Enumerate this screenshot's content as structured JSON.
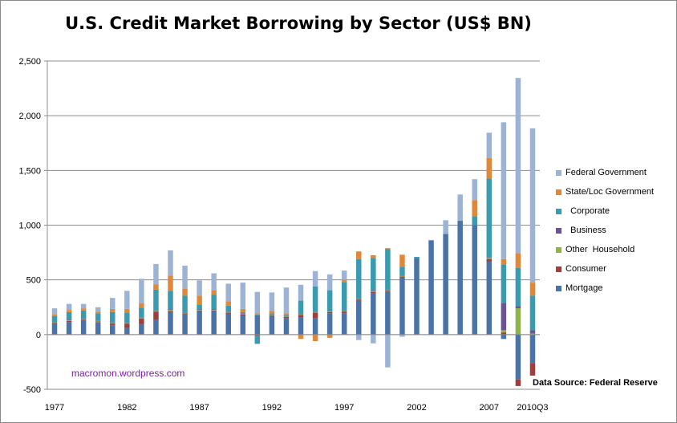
{
  "chart_data": {
    "type": "bar",
    "stacked": true,
    "title": "U.S. Credit Market Borrowing by Sector (US$ BN)",
    "xlabel": "",
    "ylabel": "",
    "ylim": [
      -500,
      2500
    ],
    "yticks": [
      -500,
      0,
      500,
      1000,
      1500,
      2000,
      2500
    ],
    "ytick_labels": [
      "-500",
      "0",
      "500",
      "1,000",
      "1,500",
      "2,000",
      "2,500"
    ],
    "categories": [
      "1977",
      "1978",
      "1979",
      "1980",
      "1981",
      "1982",
      "1983",
      "1984",
      "1985",
      "1986",
      "1987",
      "1988",
      "1989",
      "1990",
      "1991",
      "1992",
      "1993",
      "1994",
      "1995",
      "1996",
      "1997",
      "1998",
      "1999",
      "2000",
      "2001",
      "2002",
      "2003",
      "2004",
      "2005",
      "2006",
      "2007",
      "2008",
      "2009",
      "2010Q3"
    ],
    "xtick_labels": [
      "1977",
      "1982",
      "1987",
      "1992",
      "1997",
      "2002",
      "2007",
      "2010Q3"
    ],
    "grid": true,
    "legend_position": "right",
    "series": [
      {
        "name": "Mortgage",
        "color": "#4a73a8",
        "values": [
          95,
          115,
          125,
          110,
          85,
          60,
          95,
          135,
          205,
          190,
          215,
          215,
          190,
          175,
          180,
          170,
          150,
          160,
          150,
          195,
          195,
          310,
          380,
          390,
          520,
          700,
          860,
          920,
          1040,
          1000,
          670,
          -40,
          -410,
          -260
        ]
      },
      {
        "name": "Consumer",
        "color": "#a13d3d",
        "values": [
          10,
          10,
          10,
          5,
          15,
          40,
          50,
          75,
          10,
          5,
          5,
          5,
          10,
          10,
          -10,
          5,
          10,
          20,
          50,
          10,
          15,
          10,
          10,
          10,
          10,
          0,
          0,
          0,
          0,
          0,
          20,
          20,
          -60,
          -115
        ]
      },
      {
        "name": "Other  Household",
        "color": "#8fb34a",
        "values": [
          5,
          5,
          5,
          5,
          5,
          5,
          5,
          5,
          10,
          5,
          5,
          5,
          5,
          5,
          5,
          5,
          5,
          5,
          5,
          5,
          5,
          5,
          5,
          5,
          5,
          0,
          0,
          0,
          0,
          0,
          10,
          20,
          240,
          10
        ]
      },
      {
        "name": "  Business",
        "color": "#6a5497",
        "values": [
          5,
          5,
          5,
          5,
          5,
          5,
          5,
          5,
          5,
          5,
          5,
          5,
          5,
          5,
          -5,
          5,
          5,
          5,
          5,
          5,
          5,
          5,
          5,
          5,
          5,
          0,
          0,
          0,
          0,
          0,
          5,
          250,
          20,
          30
        ]
      },
      {
        "name": "  Corporate",
        "color": "#3a9aaf",
        "values": [
          55,
          70,
          75,
          70,
          95,
          90,
          90,
          190,
          170,
          150,
          40,
          135,
          55,
          10,
          -70,
          10,
          10,
          120,
          230,
          190,
          260,
          360,
          300,
          370,
          80,
          10,
          0,
          0,
          0,
          80,
          720,
          350,
          350,
          315
        ]
      },
      {
        "name": "State/Loc Government",
        "color": "#e0883a",
        "values": [
          15,
          20,
          20,
          15,
          30,
          35,
          40,
          50,
          140,
          65,
          85,
          40,
          40,
          30,
          10,
          20,
          15,
          -40,
          -60,
          -30,
          20,
          70,
          25,
          10,
          110,
          0,
          0,
          0,
          0,
          150,
          190,
          50,
          135,
          120
        ]
      },
      {
        "name": "Federal Government",
        "color": "#9db3d6",
        "values": [
          55,
          55,
          40,
          40,
          100,
          165,
          225,
          185,
          230,
          210,
          140,
          155,
          160,
          240,
          195,
          170,
          235,
          145,
          140,
          145,
          85,
          -50,
          -80,
          -300,
          -20,
          0,
          5,
          125,
          240,
          190,
          230,
          1250,
          1600,
          1410
        ]
      }
    ]
  },
  "watermark": "macromon.wordpress.com",
  "source_note": "Data Source:   Federal Reserve"
}
